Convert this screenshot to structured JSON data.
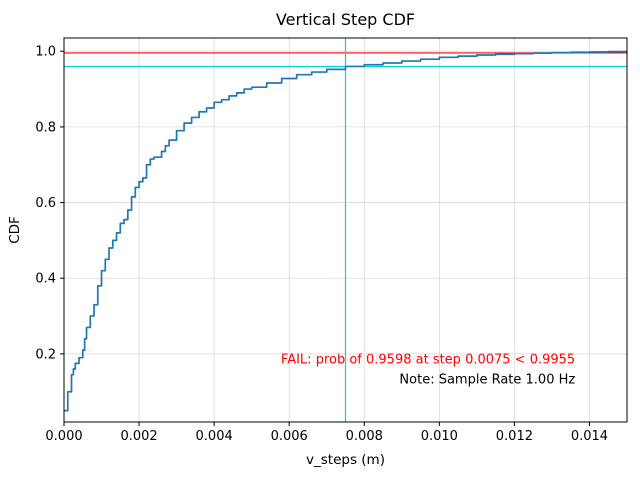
{
  "figure": {
    "background": "#ffffff"
  },
  "chart_data": {
    "type": "line",
    "title": "Vertical Step CDF",
    "xlabel": "v_steps (m)",
    "ylabel": "CDF",
    "xlim": [
      0.0,
      0.015
    ],
    "ylim": [
      0.02,
      1.035
    ],
    "grid": true,
    "legend": "none",
    "xticks": [
      0.0,
      0.002,
      0.004,
      0.006,
      0.008,
      0.01,
      0.012,
      0.014
    ],
    "xtick_labels": [
      "0.000",
      "0.002",
      "0.004",
      "0.006",
      "0.008",
      "0.010",
      "0.012",
      "0.014"
    ],
    "yticks": [
      0.2,
      0.4,
      0.6,
      0.8,
      1.0
    ],
    "ytick_labels": [
      "0.2",
      "0.4",
      "0.6",
      "0.8",
      "1.0"
    ],
    "style": {
      "grid_color": "#d9d9d9",
      "frame_color": "#000000",
      "curve_color": "#1f77b4",
      "fail_color": "#ff0000",
      "marker_color": "#00d5d5"
    },
    "series": [
      {
        "name": "empirical-cdf",
        "color": "#1f77b4",
        "draw": "step",
        "x": [
          0.0,
          0.0001,
          0.0002,
          0.00025,
          0.0003,
          0.0004,
          0.0005,
          0.00055,
          0.0006,
          0.0007,
          0.0008,
          0.0009,
          0.001,
          0.0011,
          0.0012,
          0.0013,
          0.0014,
          0.0015,
          0.0016,
          0.0017,
          0.0018,
          0.0019,
          0.002,
          0.0021,
          0.0022,
          0.0023,
          0.0024,
          0.0026,
          0.0027,
          0.0028,
          0.003,
          0.0032,
          0.0034,
          0.0036,
          0.0038,
          0.004,
          0.0042,
          0.0044,
          0.0046,
          0.0048,
          0.005,
          0.0054,
          0.0058,
          0.0062,
          0.0066,
          0.007,
          0.0075,
          0.008,
          0.0085,
          0.009,
          0.0095,
          0.01,
          0.0105,
          0.011,
          0.0115,
          0.012,
          0.0125,
          0.013,
          0.0135,
          0.014,
          0.0145,
          0.015
        ],
        "y": [
          0.05,
          0.1,
          0.145,
          0.16,
          0.175,
          0.19,
          0.21,
          0.24,
          0.27,
          0.3,
          0.33,
          0.38,
          0.42,
          0.45,
          0.48,
          0.5,
          0.52,
          0.545,
          0.555,
          0.58,
          0.615,
          0.64,
          0.655,
          0.665,
          0.7,
          0.715,
          0.72,
          0.735,
          0.75,
          0.765,
          0.79,
          0.81,
          0.825,
          0.84,
          0.85,
          0.865,
          0.872,
          0.882,
          0.89,
          0.9,
          0.905,
          0.916,
          0.928,
          0.938,
          0.945,
          0.952,
          0.9598,
          0.9645,
          0.969,
          0.974,
          0.979,
          0.984,
          0.987,
          0.99,
          0.992,
          0.9935,
          0.995,
          0.996,
          0.997,
          0.998,
          0.999,
          1.0
        ]
      }
    ],
    "ref_lines": [
      {
        "name": "threshold-line",
        "orient": "h",
        "value": 0.9955,
        "color": "#ff0000"
      },
      {
        "name": "prob-hline",
        "orient": "h",
        "value": 0.9598,
        "color": "#00d5d5"
      },
      {
        "name": "step-vline",
        "orient": "v",
        "value": 0.0075,
        "color": "#00d5d5"
      }
    ],
    "annotations": [
      {
        "name": "fail-annotation",
        "text": "FAIL: prob of 0.9598 at step 0.0075 < 0.9955",
        "color": "#ff0000",
        "x": 0.01362,
        "y": 0.175,
        "anchor": "end"
      },
      {
        "name": "note-annotation",
        "text": "Note: Sample Rate 1.00 Hz",
        "color": "#000000",
        "x": 0.01362,
        "y": 0.122,
        "anchor": "end"
      }
    ]
  }
}
